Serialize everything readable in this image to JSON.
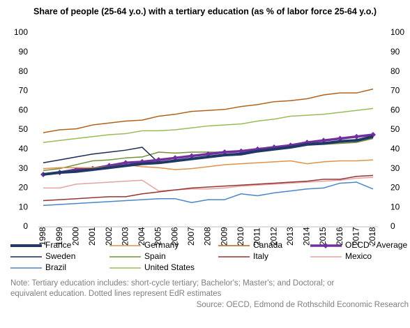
{
  "chart_data": {
    "type": "line",
    "title": "Share of people (25-64 y.o.) with a tertiary education (as  % of labor force 25-64 y.o.)",
    "categories": [
      "1998",
      "1999",
      "2000",
      "2001",
      "2002",
      "2003",
      "2004",
      "2005",
      "2006",
      "2007",
      "2008",
      "2009",
      "2010",
      "2011",
      "2012",
      "2013",
      "2014",
      "2015",
      "2016",
      "2017",
      "2018"
    ],
    "series": [
      {
        "name": "France",
        "color": "#1f3864",
        "line_width": 4,
        "values": [
          27,
          28,
          28.5,
          29.5,
          30.5,
          31.5,
          32.5,
          33,
          34,
          35,
          36,
          37,
          37.5,
          39,
          40,
          41,
          42.5,
          43,
          44,
          44.5,
          46.5
        ]
      },
      {
        "name": "Germany",
        "color": "#e0924a",
        "line_width": 1.5,
        "values": [
          30,
          30.5,
          30.5,
          30.5,
          31,
          32,
          31,
          30.5,
          29.5,
          30,
          31,
          32,
          32.5,
          33,
          33.5,
          34,
          32.5,
          33.5,
          34,
          34,
          34.5
        ]
      },
      {
        "name": "Canada",
        "color": "#b3621e",
        "line_width": 1.5,
        "values": [
          48.5,
          50,
          50.5,
          52.5,
          53.5,
          54.5,
          55,
          57,
          58,
          59.5,
          60,
          60.5,
          62,
          63,
          64.5,
          65,
          66,
          68,
          69,
          69,
          71
        ]
      },
      {
        "name": "OECD - Average",
        "color": "#7030a0",
        "line_width": 3.5,
        "marker": "diamond",
        "values": [
          27,
          28,
          29.5,
          30,
          31.5,
          33,
          33.5,
          34.5,
          35.5,
          36.5,
          37.5,
          38.5,
          39,
          40,
          41,
          42,
          43.5,
          44.5,
          45.5,
          46.5,
          47.5
        ]
      },
      {
        "name": "Sweden",
        "color": "#1c2a55",
        "line_width": 1.5,
        "values": [
          33,
          34.5,
          36,
          37.5,
          38.5,
          39.5,
          41,
          33,
          34,
          35,
          36,
          37,
          38,
          39,
          40,
          41.5,
          42.5,
          43,
          44,
          45,
          46
        ]
      },
      {
        "name": "Spain",
        "color": "#76923c",
        "line_width": 1.5,
        "values": [
          29,
          30,
          32,
          34,
          34.5,
          35.5,
          36,
          38.5,
          38,
          38.5,
          38.5,
          38.5,
          39,
          40,
          41,
          41.5,
          42.5,
          42.5,
          43,
          43.5,
          45.5
        ]
      },
      {
        "name": "Italy",
        "color": "#943634",
        "line_width": 1.5,
        "values": [
          13.5,
          14,
          14.5,
          15,
          15.5,
          15.5,
          17,
          18,
          19,
          20,
          20.5,
          21,
          21.5,
          22,
          22.5,
          23,
          23.5,
          24.5,
          24.5,
          26,
          26.5
        ]
      },
      {
        "name": "Mexico",
        "color": "#e6a3a3",
        "line_width": 1.5,
        "values": [
          20,
          20,
          22,
          22.5,
          23,
          23.5,
          24,
          18.5,
          19,
          19.5,
          19.5,
          20,
          21,
          21.5,
          22,
          22.5,
          23,
          23.5,
          24,
          25,
          25.5
        ]
      },
      {
        "name": "Brazil",
        "color": "#4a86c8",
        "line_width": 1.5,
        "values": [
          11,
          11.5,
          12,
          12.5,
          13,
          13.5,
          14,
          14.5,
          14.5,
          12.5,
          14,
          14,
          17,
          16,
          17.5,
          18.5,
          19.5,
          20,
          22.5,
          23,
          19.5
        ]
      },
      {
        "name": "United States",
        "color": "#9bbb59",
        "line_width": 1.5,
        "values": [
          43.5,
          44.5,
          45.5,
          46.5,
          47.5,
          48,
          49.5,
          49.5,
          50,
          51,
          52,
          52.5,
          53,
          54.5,
          55.5,
          57,
          57.5,
          58,
          59,
          60,
          61
        ]
      }
    ],
    "ylim": [
      0,
      100
    ],
    "yticks": [
      0,
      10,
      20,
      30,
      40,
      50,
      60,
      70,
      80,
      90,
      100
    ],
    "grid": false,
    "note": [
      "Note: Tertiary education includes: short-cycle tertiary; Bachelor's; Master's; and Doctoral; or",
      "equivalent education. Dotted lines represent EdR estimates"
    ],
    "source": "Source: OECD, Edmond de Rothschild Economic Research"
  }
}
